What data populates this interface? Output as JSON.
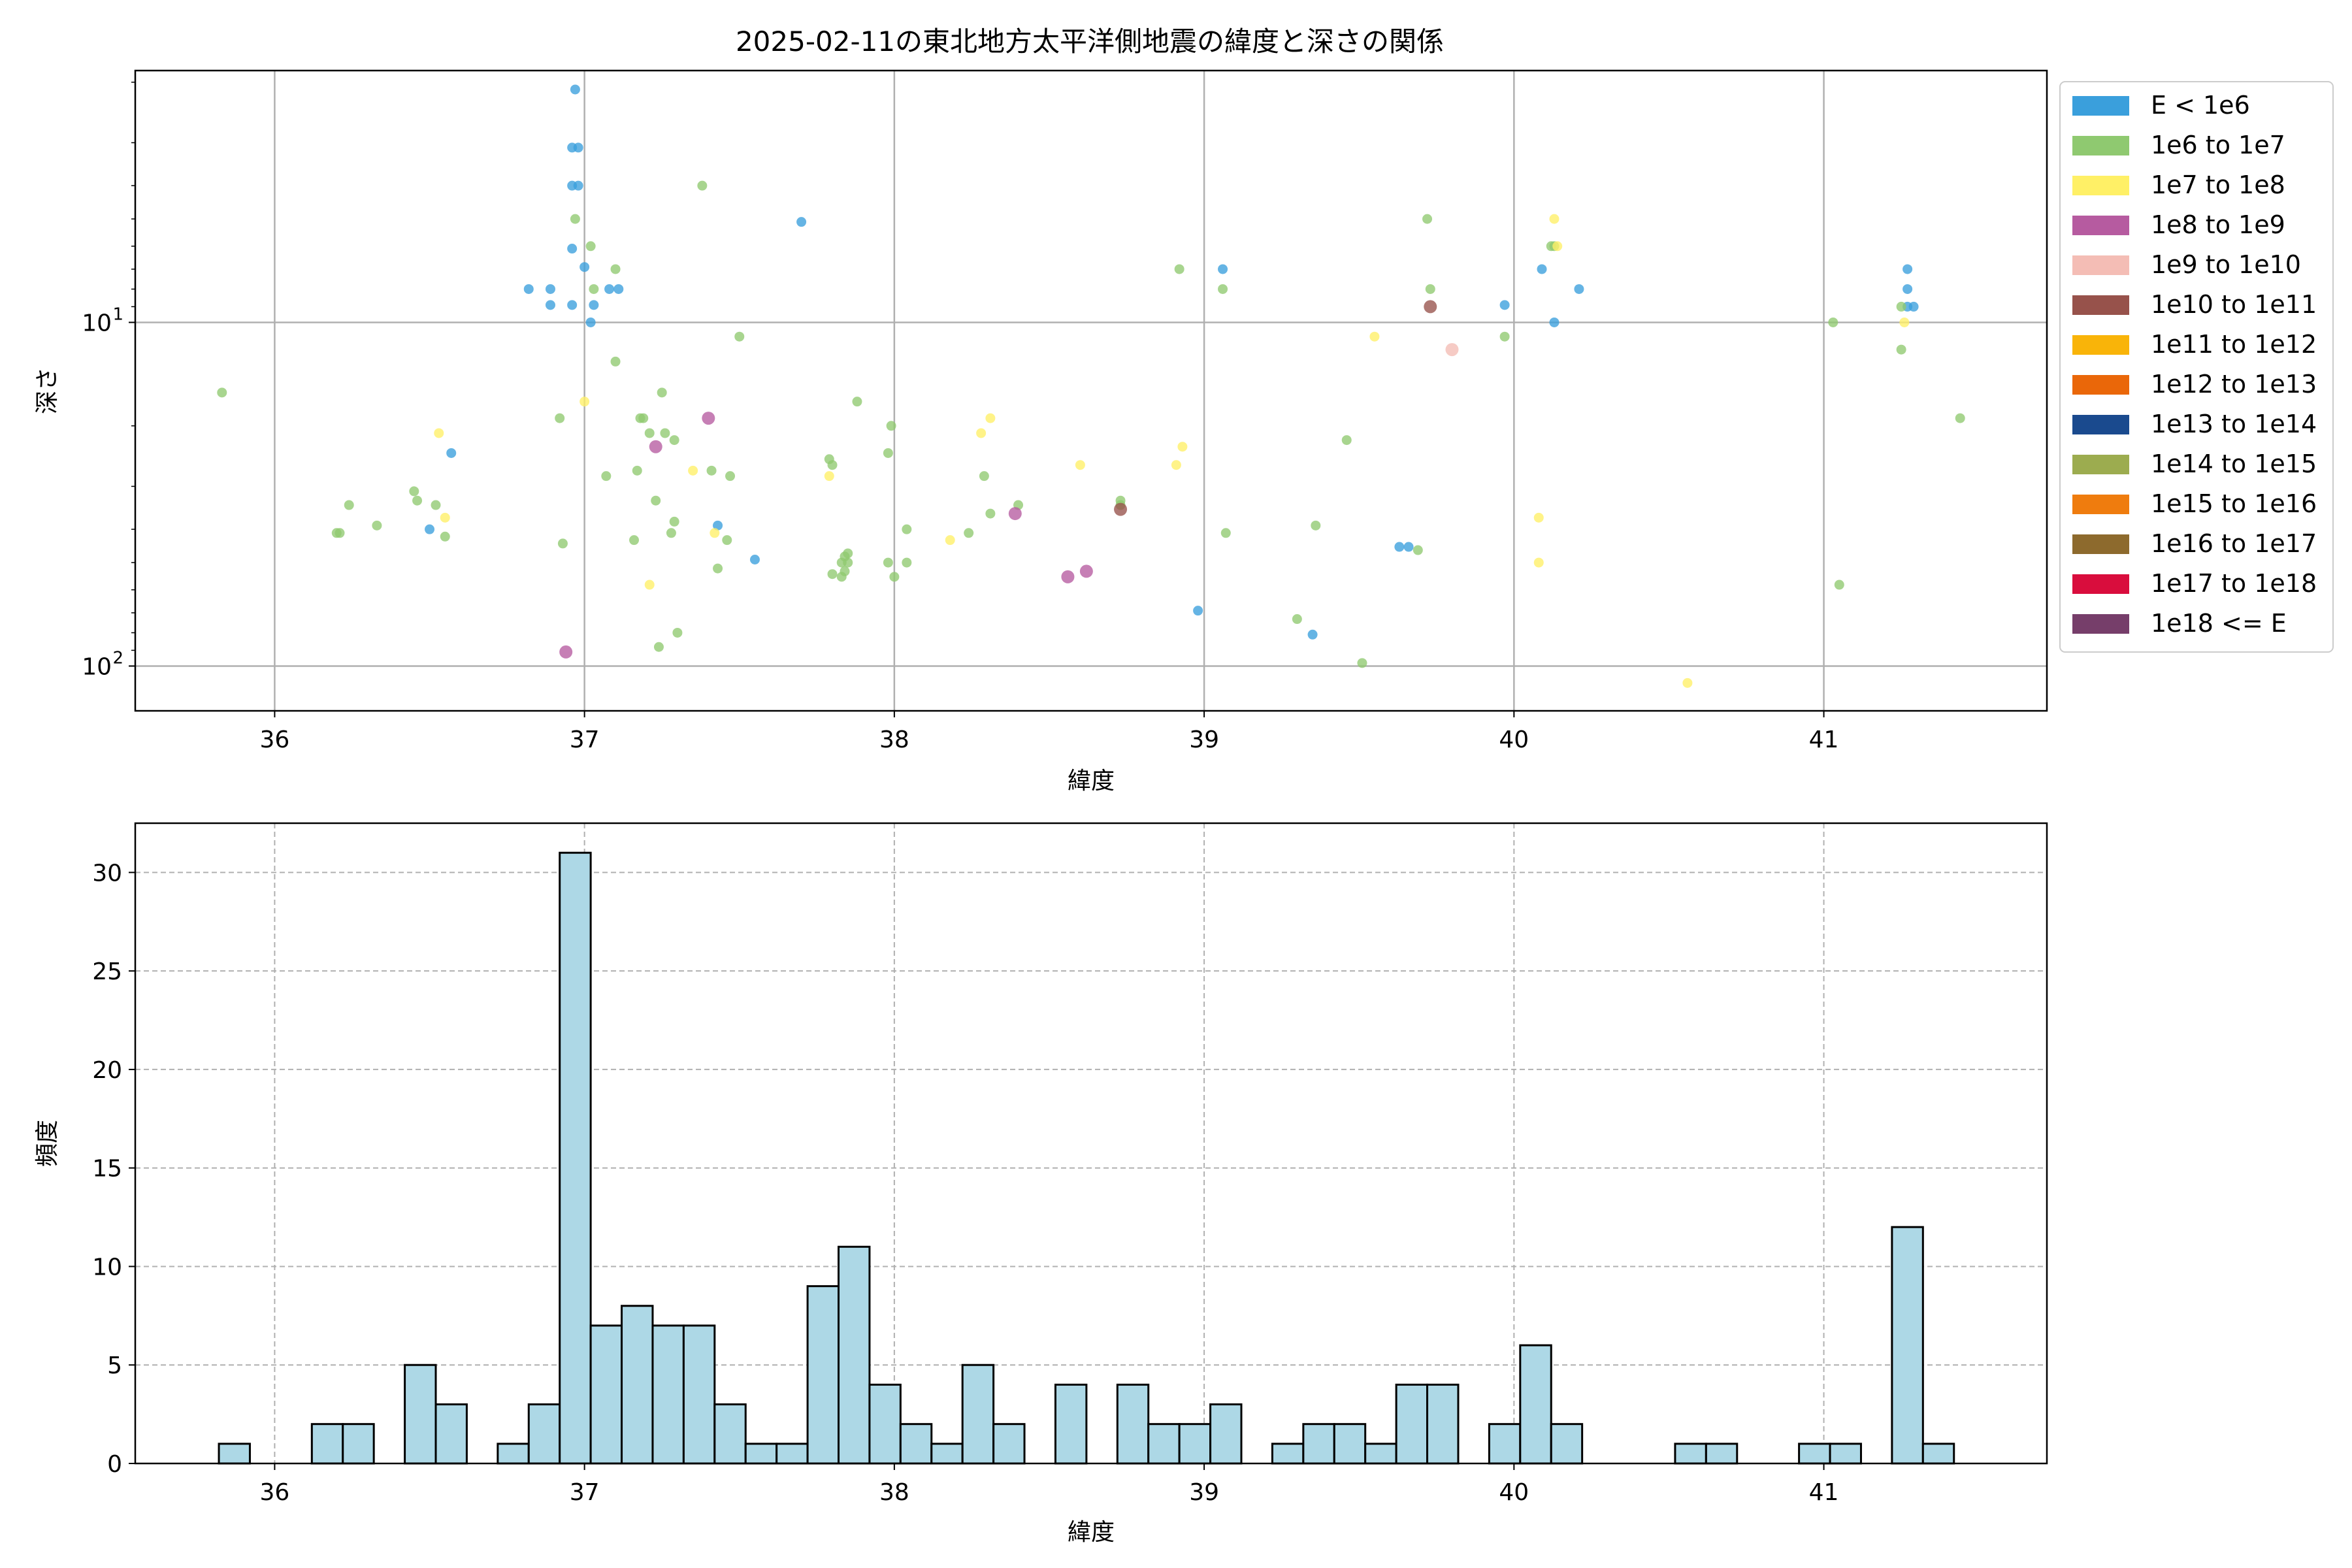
{
  "chart_data": [
    {
      "type": "scatter",
      "title": "2025-02-11の東北地方太平洋側地震の緯度と深さの関係",
      "xlabel": "緯度",
      "ylabel": "深さ",
      "xlim": [
        35.55,
        41.72
      ],
      "x_ticks": [
        36,
        37,
        38,
        39,
        40,
        41
      ],
      "y_scale": "log",
      "y_inverted": true,
      "ylim": [
        1.85,
        135
      ],
      "y_ticks": [
        {
          "value": 10,
          "label": "10",
          "exp": "1"
        },
        {
          "value": 100,
          "label": "10",
          "exp": "2"
        }
      ],
      "grid": true,
      "legend_placement": "outside right, top",
      "legend": [
        {
          "label": "E < 1e6",
          "color": "#3a9fdc"
        },
        {
          "label": "1e6 to 1e7",
          "color": "#8fc970"
        },
        {
          "label": "1e7 to 1e8",
          "color": "#fff066"
        },
        {
          "label": "1e8 to 1e9",
          "color": "#b65ba0"
        },
        {
          "label": "1e9 to 1e10",
          "color": "#f4bdb5"
        },
        {
          "label": "1e10 to 1e11",
          "color": "#97524b"
        },
        {
          "label": "1e11 to 1e12",
          "color": "#f9b409"
        },
        {
          "label": "1e12 to 1e13",
          "color": "#ea6709"
        },
        {
          "label": "1e13 to 1e14",
          "color": "#1a4a8e"
        },
        {
          "label": "1e14 to 1e15",
          "color": "#9cac4f"
        },
        {
          "label": "1e15 to 1e16",
          "color": "#ef7c0e"
        },
        {
          "label": "1e16 to 1e17",
          "color": "#8d6a2d"
        },
        {
          "label": "1e17 to 1e18",
          "color": "#d90d3d"
        },
        {
          "label": "1e18 <= E",
          "color": "#763e6a"
        }
      ],
      "series": [
        {
          "category": 0,
          "points": [
            [
              36.97,
              2.1
            ],
            [
              36.96,
              3.1
            ],
            [
              36.98,
              3.1
            ],
            [
              36.96,
              4
            ],
            [
              36.98,
              4
            ],
            [
              36.96,
              6.1
            ],
            [
              37.0,
              6.9
            ],
            [
              36.82,
              8
            ],
            [
              36.89,
              8
            ],
            [
              37.08,
              8
            ],
            [
              37.11,
              8
            ],
            [
              36.89,
              8.9
            ],
            [
              36.96,
              8.9
            ],
            [
              37.03,
              8.9
            ],
            [
              37.02,
              10
            ],
            [
              37.7,
              5.1
            ],
            [
              36.5,
              40
            ],
            [
              36.57,
              24
            ],
            [
              37.43,
              39
            ],
            [
              37.55,
              49
            ],
            [
              38.98,
              69
            ],
            [
              39.35,
              81
            ],
            [
              39.06,
              7
            ],
            [
              39.63,
              45
            ],
            [
              39.66,
              45
            ],
            [
              40.09,
              7
            ],
            [
              40.21,
              8
            ],
            [
              39.97,
              8.9
            ],
            [
              40.13,
              10
            ],
            [
              41.27,
              7
            ],
            [
              41.27,
              8
            ],
            [
              41.27,
              9
            ],
            [
              41.29,
              9
            ]
          ]
        },
        {
          "category": 1,
          "points": [
            [
              35.83,
              16
            ],
            [
              36.2,
              41
            ],
            [
              36.21,
              41
            ],
            [
              36.24,
              34
            ],
            [
              36.33,
              39
            ],
            [
              36.45,
              31
            ],
            [
              36.46,
              33
            ],
            [
              36.52,
              34
            ],
            [
              36.55,
              42
            ],
            [
              36.92,
              19
            ],
            [
              36.93,
              44
            ],
            [
              36.97,
              5
            ],
            [
              37.02,
              6
            ],
            [
              37.03,
              8
            ],
            [
              37.07,
              28
            ],
            [
              37.1,
              7
            ],
            [
              37.1,
              13
            ],
            [
              37.16,
              43
            ],
            [
              37.17,
              27
            ],
            [
              37.18,
              19
            ],
            [
              37.19,
              19
            ],
            [
              37.21,
              21
            ],
            [
              37.23,
              33
            ],
            [
              37.24,
              88
            ],
            [
              37.25,
              16
            ],
            [
              37.26,
              21
            ],
            [
              37.28,
              41
            ],
            [
              37.29,
              38
            ],
            [
              37.29,
              22
            ],
            [
              37.3,
              80
            ],
            [
              37.38,
              4
            ],
            [
              37.41,
              27
            ],
            [
              37.43,
              52
            ],
            [
              37.46,
              43
            ],
            [
              37.47,
              28
            ],
            [
              37.5,
              11
            ],
            [
              37.79,
              25
            ],
            [
              37.8,
              26
            ],
            [
              37.8,
              54
            ],
            [
              37.83,
              50
            ],
            [
              37.83,
              55
            ],
            [
              37.84,
              48
            ],
            [
              37.84,
              53
            ],
            [
              37.85,
              50
            ],
            [
              37.85,
              47
            ],
            [
              37.88,
              17
            ],
            [
              37.98,
              24
            ],
            [
              37.99,
              20
            ],
            [
              37.98,
              50
            ],
            [
              38.0,
              55
            ],
            [
              38.04,
              50
            ],
            [
              38.04,
              40
            ],
            [
              38.24,
              41
            ],
            [
              38.29,
              28
            ],
            [
              38.31,
              36
            ],
            [
              38.4,
              34
            ],
            [
              38.73,
              33
            ],
            [
              38.73,
              34
            ],
            [
              38.92,
              7
            ],
            [
              39.06,
              8
            ],
            [
              39.07,
              41
            ],
            [
              39.3,
              73
            ],
            [
              39.36,
              39
            ],
            [
              39.46,
              22
            ],
            [
              39.51,
              98
            ],
            [
              39.69,
              46
            ],
            [
              39.72,
              5
            ],
            [
              39.73,
              8
            ],
            [
              39.97,
              11
            ],
            [
              40.12,
              6
            ],
            [
              40.13,
              6
            ],
            [
              41.03,
              10
            ],
            [
              41.05,
              58
            ],
            [
              41.25,
              12
            ],
            [
              41.25,
              9
            ],
            [
              41.44,
              19
            ]
          ]
        },
        {
          "category": 2,
          "points": [
            [
              36.53,
              21
            ],
            [
              36.55,
              37
            ],
            [
              37.0,
              17
            ],
            [
              37.21,
              58
            ],
            [
              37.35,
              27
            ],
            [
              37.42,
              41
            ],
            [
              37.79,
              28
            ],
            [
              38.18,
              43
            ],
            [
              38.28,
              21
            ],
            [
              38.31,
              19
            ],
            [
              38.6,
              26
            ],
            [
              38.91,
              26
            ],
            [
              38.93,
              23
            ],
            [
              39.55,
              11
            ],
            [
              40.08,
              37
            ],
            [
              40.08,
              50
            ],
            [
              40.13,
              5
            ],
            [
              40.14,
              6
            ],
            [
              40.56,
              112
            ],
            [
              41.26,
              10
            ]
          ]
        },
        {
          "category": 3,
          "points": [
            [
              36.94,
              91
            ],
            [
              37.23,
              23
            ],
            [
              37.4,
              19
            ],
            [
              38.39,
              36
            ],
            [
              38.56,
              55
            ],
            [
              38.62,
              53
            ]
          ]
        },
        {
          "category": 4,
          "points": [
            [
              39.8,
              12
            ]
          ]
        },
        {
          "category": 5,
          "points": [
            [
              38.73,
              35
            ],
            [
              39.73,
              9
            ]
          ]
        }
      ]
    },
    {
      "type": "bar",
      "title": "",
      "xlabel": "緯度",
      "ylabel": "頻度",
      "xlim": [
        35.55,
        41.72
      ],
      "ylim": [
        0,
        32.5
      ],
      "x_ticks": [
        36,
        37,
        38,
        39,
        40,
        41
      ],
      "y_ticks": [
        0,
        5,
        10,
        15,
        20,
        25,
        30
      ],
      "grid": true,
      "bin_start": 35.82,
      "bin_width": 0.1,
      "values": [
        1,
        0,
        0,
        2,
        2,
        0,
        5,
        3,
        0,
        1,
        3,
        31,
        7,
        8,
        7,
        7,
        3,
        1,
        1,
        9,
        11,
        4,
        2,
        1,
        5,
        2,
        0,
        4,
        0,
        4,
        2,
        2,
        3,
        0,
        1,
        2,
        2,
        1,
        4,
        4,
        0,
        2,
        6,
        2,
        0,
        0,
        0,
        1,
        1,
        0,
        0,
        1,
        1,
        0,
        12,
        1
      ],
      "bar_color": "#add8e6",
      "edge_color": "#000000"
    }
  ]
}
